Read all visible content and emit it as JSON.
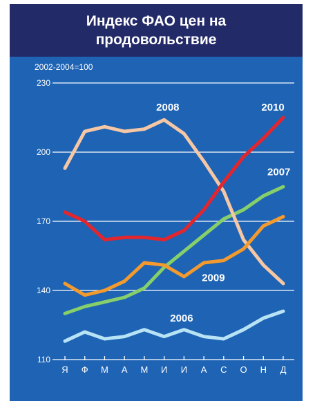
{
  "header": {
    "title_line1": "Индекс ФАО цен на",
    "title_line2": "продовольствие"
  },
  "note": "2002-2004=100",
  "colors": {
    "background": "#1e63b4",
    "title_background": "#232a68",
    "gridline": "#ffffff",
    "text": "#ffffff"
  },
  "chart_data": {
    "type": "line",
    "title": "Индекс ФАО цен на продовольствие",
    "xlabel": "",
    "ylabel": "",
    "note": "2002-2004=100",
    "categories": [
      "Я",
      "Ф",
      "М",
      "А",
      "М",
      "И",
      "И",
      "А",
      "С",
      "О",
      "Н",
      "Д"
    ],
    "yticks": [
      110,
      140,
      170,
      200,
      230
    ],
    "ylim": [
      110,
      230
    ],
    "grid": true,
    "legend": "inline labels",
    "series": [
      {
        "name": "2006",
        "color": "#b7e3f5",
        "values": [
          118,
          122,
          119,
          120,
          123,
          120,
          123,
          120,
          119,
          123,
          128,
          131
        ]
      },
      {
        "name": "2007",
        "color": "#86cf6a",
        "values": [
          130,
          133,
          135,
          137,
          141,
          150,
          157,
          164,
          171,
          175,
          181,
          185
        ]
      },
      {
        "name": "2008",
        "color": "#f6c7a4",
        "values": [
          193,
          209,
          211,
          209,
          210,
          214,
          208,
          196,
          183,
          162,
          151,
          143
        ]
      },
      {
        "name": "2009",
        "color": "#f39a2e",
        "values": [
          143,
          138,
          140,
          144,
          152,
          151,
          146,
          152,
          153,
          158,
          168,
          172
        ]
      },
      {
        "name": "2010",
        "color": "#e3262e",
        "values": [
          174,
          170,
          162,
          163,
          163,
          162,
          166,
          175,
          187,
          198,
          206,
          215
        ]
      }
    ]
  }
}
